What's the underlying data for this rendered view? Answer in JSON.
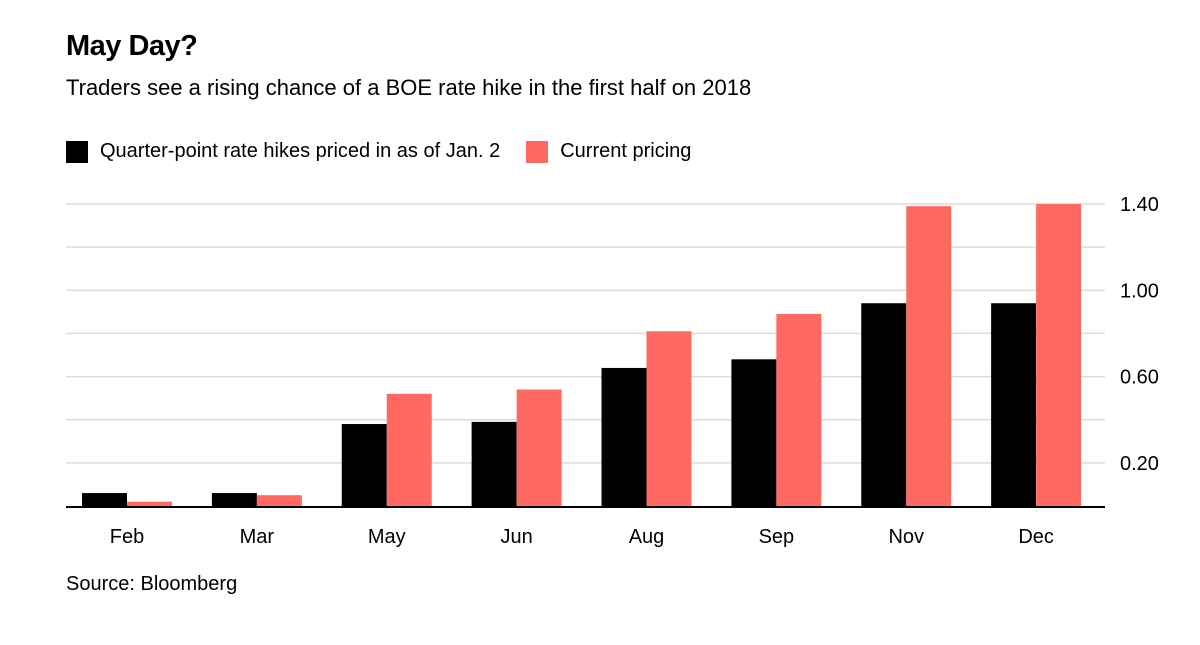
{
  "chart_data": {
    "type": "bar",
    "title": "May Day?",
    "subtitle": "Traders see a rising chance of a BOE rate hike in the first half on 2018",
    "source": "Source: Bloomberg",
    "categories": [
      "Feb",
      "Mar",
      "May",
      "Jun",
      "Aug",
      "Sep",
      "Nov",
      "Dec"
    ],
    "series": [
      {
        "name": "Quarter-point rate hikes priced in as of Jan. 2",
        "color": "#000000",
        "values": [
          0.06,
          0.06,
          0.38,
          0.39,
          0.64,
          0.68,
          0.94,
          0.94
        ]
      },
      {
        "name": "Current pricing",
        "color": "#ff6961",
        "values": [
          0.02,
          0.05,
          0.52,
          0.54,
          0.81,
          0.89,
          1.39,
          1.4
        ]
      }
    ],
    "ylim": [
      0,
      1.4
    ],
    "yticks": [
      0.2,
      0.6,
      1.0,
      1.4
    ],
    "ytick_labels": [
      "0.20",
      "0.60",
      "1.00",
      "1.40"
    ],
    "y_axis_side": "right",
    "grid": true,
    "legend_position": "top-left"
  }
}
